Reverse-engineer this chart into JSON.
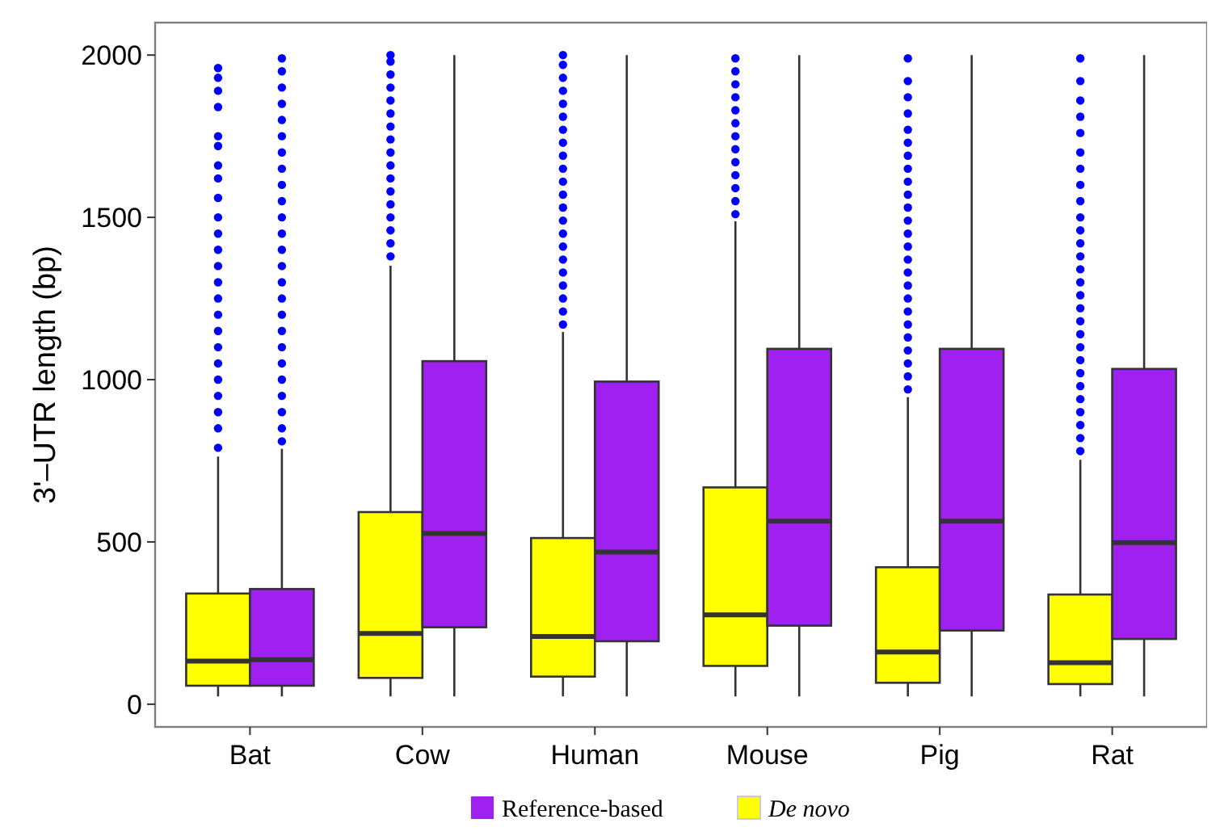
{
  "chart_data": {
    "type": "box",
    "ylabel": "3'–UTR length (bp)",
    "categories": [
      "Bat",
      "Cow",
      "Human",
      "Mouse",
      "Pig",
      "Rat"
    ],
    "ylim": [
      -70,
      2100
    ],
    "yticks": [
      0,
      500,
      1000,
      1500,
      2000
    ],
    "grid": false,
    "legend": "bottom",
    "series": [
      {
        "name": "De novo",
        "color": "#ffff00",
        "boxes": [
          {
            "low": 24,
            "q1": 57,
            "median": 133,
            "q3": 341,
            "high": 763,
            "outliers": [
              790,
              850,
              900,
              950,
              1000,
              1050,
              1100,
              1150,
              1200,
              1250,
              1300,
              1350,
              1400,
              1450,
              1500,
              1560,
              1620,
              1660,
              1720,
              1750,
              1840,
              1890,
              1930,
              1960
            ]
          },
          {
            "low": 24,
            "q1": 81,
            "median": 218,
            "q3": 592,
            "high": 1351,
            "outliers": [
              1380,
              1420,
              1460,
              1500,
              1540,
              1580,
              1620,
              1660,
              1700,
              1740,
              1780,
              1820,
              1860,
              1900,
              1940,
              1980,
              2000
            ]
          },
          {
            "low": 24,
            "q1": 85,
            "median": 209,
            "q3": 512,
            "high": 1147,
            "outliers": [
              1170,
              1210,
              1250,
              1290,
              1330,
              1370,
              1410,
              1450,
              1490,
              1530,
              1570,
              1610,
              1650,
              1690,
              1730,
              1770,
              1810,
              1850,
              1890,
              1930,
              1970,
              2000
            ]
          },
          {
            "low": 24,
            "q1": 118,
            "median": 275,
            "q3": 668,
            "high": 1488,
            "outliers": [
              1510,
              1550,
              1590,
              1630,
              1670,
              1710,
              1750,
              1790,
              1830,
              1870,
              1910,
              1950,
              1990
            ]
          },
          {
            "low": 24,
            "q1": 66,
            "median": 161,
            "q3": 422,
            "high": 946,
            "outliers": [
              970,
              1010,
              1050,
              1090,
              1130,
              1170,
              1210,
              1250,
              1290,
              1330,
              1370,
              1410,
              1450,
              1490,
              1530,
              1570,
              1610,
              1650,
              1690,
              1730,
              1770,
              1820,
              1870,
              1920,
              1990
            ]
          },
          {
            "low": 24,
            "q1": 62,
            "median": 128,
            "q3": 338,
            "high": 753,
            "outliers": [
              780,
              820,
              860,
              900,
              940,
              980,
              1020,
              1060,
              1100,
              1140,
              1180,
              1220,
              1260,
              1300,
              1340,
              1380,
              1420,
              1460,
              1500,
              1550,
              1600,
              1650,
              1700,
              1760,
              1810,
              1860,
              1920,
              1990
            ]
          }
        ]
      },
      {
        "name": "Reference-based",
        "color": "#a020f0",
        "boxes": [
          {
            "low": 24,
            "q1": 57,
            "median": 137,
            "q3": 355,
            "high": 787,
            "outliers": [
              810,
              850,
              900,
              950,
              1000,
              1050,
              1100,
              1150,
              1200,
              1250,
              1300,
              1350,
              1400,
              1450,
              1500,
              1550,
              1600,
              1650,
              1700,
              1750,
              1800,
              1850,
              1900,
              1950,
              1990
            ]
          },
          {
            "low": 24,
            "q1": 237,
            "median": 526,
            "q3": 1057,
            "high": 2000
          },
          {
            "low": 24,
            "q1": 194,
            "median": 469,
            "q3": 994,
            "high": 2000
          },
          {
            "low": 24,
            "q1": 242,
            "median": 564,
            "q3": 1095,
            "high": 2000
          },
          {
            "low": 24,
            "q1": 227,
            "median": 564,
            "q3": 1095,
            "high": 2000
          },
          {
            "low": 24,
            "q1": 201,
            "median": 498,
            "q3": 1033,
            "high": 2000
          }
        ]
      }
    ]
  }
}
